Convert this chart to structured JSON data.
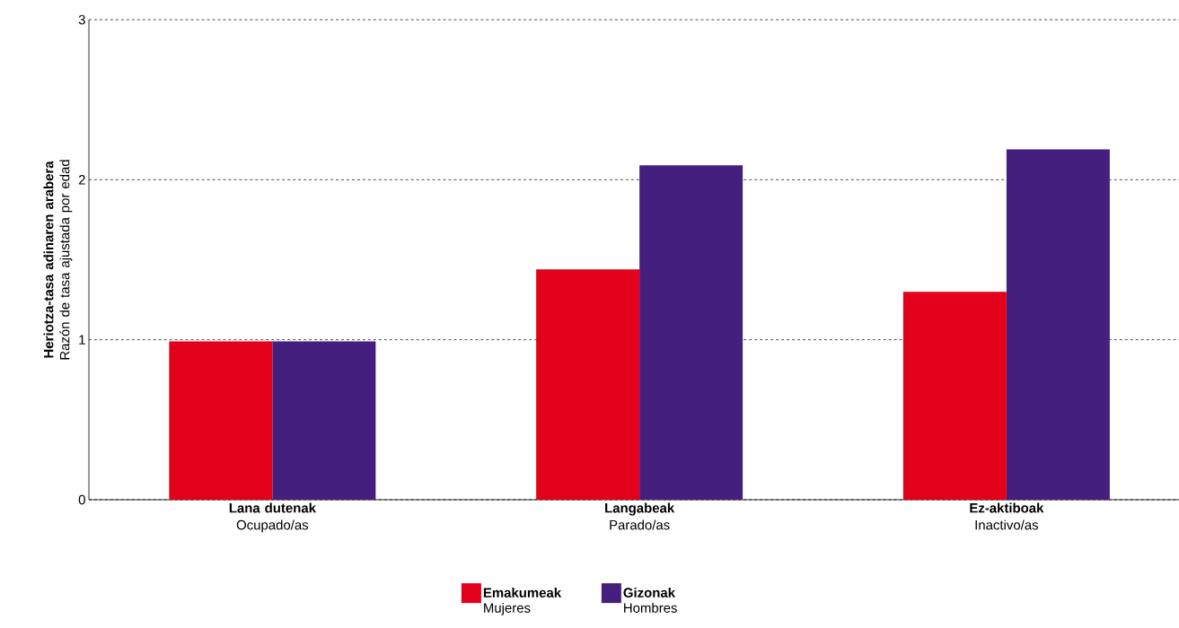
{
  "chart_data": {
    "type": "bar",
    "categories": [
      "**Lana dutenak** Ocupado/as",
      "**Langabeak** Parado/as",
      "**Ez-aktiboak** Inactivo/as"
    ],
    "ylabel": "**Heriotza-tasa adinaren arabera** Razón de tasa ajustada por edad",
    "series": [
      {
        "name": "**Emakumeak** Mujeres",
        "color": "#e2001a",
        "values": [
          0.99,
          1.44,
          1.3
        ]
      },
      {
        "name": "**Gizonak** Hombres",
        "color": "#451f7e",
        "values": [
          0.99,
          2.09,
          2.19
        ]
      }
    ],
    "ylim": [
      0,
      3
    ],
    "yticks": [
      0,
      1,
      2,
      3
    ],
    "grid": "y",
    "legend": "bottom"
  }
}
